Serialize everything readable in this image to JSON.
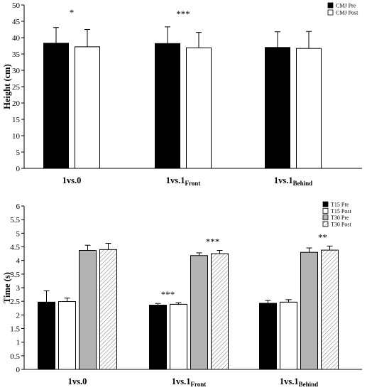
{
  "chart_data": [
    {
      "type": "bar",
      "ylabel": "Height (cm)",
      "ylim": [
        0,
        50
      ],
      "yticks": [
        0,
        5,
        10,
        15,
        20,
        25,
        30,
        35,
        40,
        45,
        50
      ],
      "categories": [
        {
          "main": "1vs.0",
          "sub": ""
        },
        {
          "main": "1vs.1",
          "sub": "Front"
        },
        {
          "main": "1vs.1",
          "sub": "Behind"
        }
      ],
      "series": [
        {
          "name": "CMJ Pre",
          "values": [
            38.3,
            38.2,
            37.0
          ],
          "errors": [
            4.8,
            5.1,
            4.8
          ],
          "fill": "#000000",
          "pattern": "solid"
        },
        {
          "name": "CMJ Post",
          "values": [
            37.2,
            36.9,
            36.7
          ],
          "errors": [
            5.3,
            4.7,
            5.2
          ],
          "fill": "#ffffff",
          "pattern": "solid"
        }
      ],
      "annotations": [
        "*",
        "***",
        ""
      ],
      "legend_position": "top-right",
      "grid": false
    },
    {
      "type": "bar",
      "ylabel": "Time (s)",
      "ylim": [
        0,
        6
      ],
      "yticks": [
        0,
        0.5,
        1,
        1.5,
        2,
        2.5,
        3,
        3.5,
        4,
        4.5,
        5,
        5.5,
        6
      ],
      "categories": [
        {
          "main": "1vs.0",
          "sub": ""
        },
        {
          "main": "1vs.1",
          "sub": "Front"
        },
        {
          "main": "1vs.1",
          "sub": "Behind"
        }
      ],
      "series": [
        {
          "name": "T15 Pre",
          "values": [
            2.47,
            2.36,
            2.43
          ],
          "errors": [
            0.42,
            0.06,
            0.11
          ],
          "fill": "#000000",
          "pattern": "solid"
        },
        {
          "name": "T15 Post",
          "values": [
            2.49,
            2.39,
            2.47
          ],
          "errors": [
            0.13,
            0.06,
            0.09
          ],
          "fill": "#ffffff",
          "pattern": "solid"
        },
        {
          "name": "T30 Pre",
          "values": [
            4.37,
            4.18,
            4.3
          ],
          "errors": [
            0.19,
            0.1,
            0.16
          ],
          "fill": "#b3b3b3",
          "pattern": "solid"
        },
        {
          "name": "T30 Post",
          "values": [
            4.4,
            4.25,
            4.38
          ],
          "errors": [
            0.23,
            0.12,
            0.15
          ],
          "fill": "#ffffff",
          "pattern": "hatch"
        }
      ],
      "annotations": [
        {
          "category": 1,
          "series": 0,
          "text": "***"
        },
        {
          "category": 1,
          "series": 3,
          "text": "***"
        },
        {
          "category": 2,
          "series": 3,
          "text": "**"
        }
      ],
      "legend_position": "top-right",
      "grid": false
    }
  ]
}
